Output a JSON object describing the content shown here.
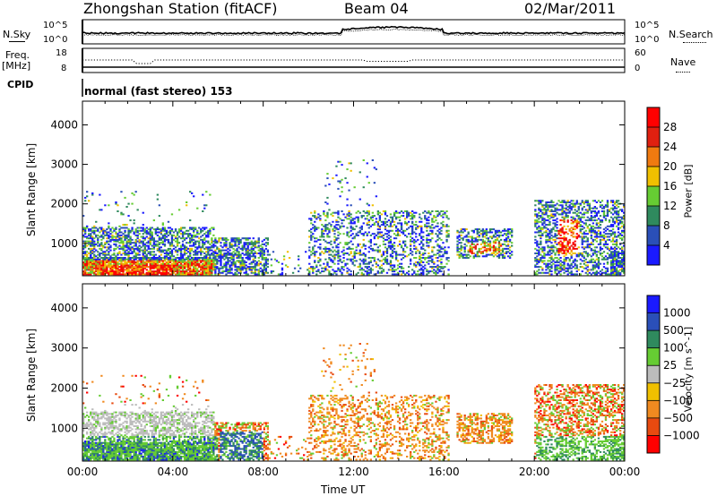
{
  "header": {
    "station_title": "Zhongshan Station (fitACF)",
    "beam": "Beam 04",
    "date": "02/Mar/2011"
  },
  "status_strip": {
    "nsky_label": "N.Sky",
    "nsky_ticks": [
      "10^5",
      "10^0"
    ],
    "nsearch_label": "N.Search",
    "nsearch_ticks": [
      "10^5",
      "10^0"
    ],
    "freq_label": "Freq.",
    "freq_unit": "[MHz]",
    "freq_ticks": [
      "18",
      "8"
    ],
    "nave_label": "Nave",
    "nave_ticks": [
      "60",
      "0"
    ],
    "cpid_label": "CPID",
    "cpid_value": "normal (fast stereo) 153"
  },
  "chart_data": [
    {
      "type": "heatmap",
      "parameter": "Power",
      "ylabel": "Slant Range [km]",
      "ylim": [
        180,
        4600
      ],
      "yticks": [
        "1000",
        "2000",
        "3000",
        "4000"
      ],
      "xlim": [
        0,
        24
      ],
      "colorbar": {
        "label": "Power [dB]",
        "tick_labels": [
          "4",
          "8",
          "12",
          "16",
          "20",
          "24",
          "28"
        ],
        "range": [
          0,
          32
        ],
        "colors": [
          "#1a1aff",
          "#2a4fb8",
          "#2f8a5e",
          "#66cc33",
          "#f0c000",
          "#f07a10",
          "#e02010",
          "#ff0000"
        ]
      },
      "echo_regions": [
        {
          "t": [
            0.0,
            5.6
          ],
          "r": [
            200,
            1400
          ],
          "level": "mixed",
          "note": "strongest near 300-500 km, 01:00-04:00"
        },
        {
          "t": [
            5.8,
            8.0
          ],
          "r": [
            200,
            1100
          ],
          "level": "mixed"
        },
        {
          "t": [
            10.0,
            16.0
          ],
          "r": [
            300,
            1800
          ],
          "level": "sparse"
        },
        {
          "t": [
            16.5,
            19.0
          ],
          "r": [
            700,
            1300
          ],
          "level": "mixed"
        },
        {
          "t": [
            20.0,
            24.0
          ],
          "r": [
            300,
            2000
          ],
          "level": "mixed",
          "note": "strong near 21:30, 700-1600 km"
        }
      ]
    },
    {
      "type": "heatmap",
      "parameter": "Velocity",
      "ylabel": "Slant Range [km]",
      "ylim": [
        180,
        4600
      ],
      "yticks": [
        "1000",
        "2000",
        "3000",
        "4000"
      ],
      "xlim": [
        0,
        24
      ],
      "xticks": [
        "00:00",
        "04:00",
        "08:00",
        "12:00",
        "16:00",
        "20:00",
        "00:00"
      ],
      "xlabel": "Time UT",
      "colorbar": {
        "label": "Velocity [m s^-1]",
        "tick_labels": [
          "1000",
          "500",
          "100",
          "25",
          "−25",
          "−100",
          "−500",
          "−1000"
        ],
        "range": [
          -1250,
          1250
        ],
        "colors": [
          "#ff0000",
          "#e84a10",
          "#f08a20",
          "#f0c000",
          "#bcbcbc",
          "#66cc33",
          "#2f8a5e",
          "#2a4fb8",
          "#1a1aff"
        ]
      },
      "echo_regions": [
        {
          "t": [
            0.0,
            5.8
          ],
          "r": [
            300,
            800
          ],
          "level": "positive",
          "note": "green/blue near ranges"
        },
        {
          "t": [
            0.5,
            5.8
          ],
          "r": [
            800,
            1600
          ],
          "level": "ground_scatter",
          "note": "grey band"
        },
        {
          "t": [
            10.0,
            16.0
          ],
          "r": [
            400,
            1800
          ],
          "level": "negative",
          "note": "orange"
        },
        {
          "t": [
            16.5,
            19.0
          ],
          "r": [
            700,
            1300
          ],
          "level": "negative"
        },
        {
          "t": [
            20.0,
            24.0
          ],
          "r": [
            400,
            1600
          ],
          "level": "mixed"
        }
      ]
    }
  ]
}
